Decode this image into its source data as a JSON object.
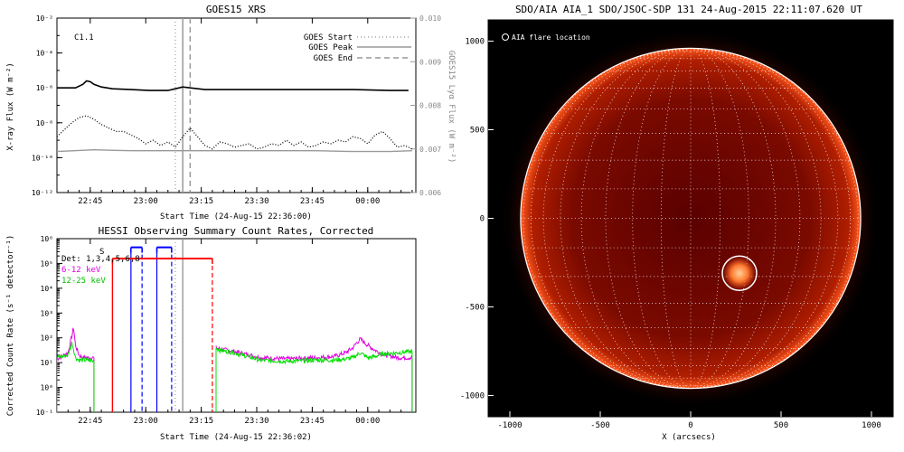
{
  "chart_data": [
    {
      "type": "line",
      "title": "GOES15 XRS",
      "annotation": "C1.1",
      "xlabel": "Start Time (24-Aug-15 22:36:00)",
      "ylabel": "X-ray Flux (W m⁻²)",
      "y2label": "GOES15 Lyα Flux (W m⁻²)",
      "xticks": [
        "22:45",
        "23:00",
        "23:15",
        "23:30",
        "23:45",
        "00:00"
      ],
      "x_minutes_from_2236": [
        9,
        24,
        39,
        54,
        69,
        84
      ],
      "xlim_minutes_from_2236": [
        0,
        97
      ],
      "yticks": [
        "10⁻²",
        "10⁻⁴",
        "10⁻⁶",
        "10⁻⁸",
        "10⁻¹⁰",
        "10⁻¹²"
      ],
      "ylim_log10": [
        -12,
        -2
      ],
      "y2ticks": [
        "0.010",
        "0.009",
        "0.008",
        "0.007",
        "0.006"
      ],
      "y2lim": [
        0.006,
        0.01
      ],
      "legend": [
        {
          "label": "GOES Start",
          "style": "dotted"
        },
        {
          "label": "GOES Peak",
          "style": "solid"
        },
        {
          "label": "GOES End",
          "style": "dashed"
        }
      ],
      "markers_minutes_from_2236": {
        "start": 32,
        "peak": 34,
        "end": 36
      },
      "series": [
        {
          "name": "",
          "style": "solid-black",
          "x": [
            0,
            5,
            7,
            8,
            9,
            10,
            12,
            15,
            20,
            25,
            30,
            32,
            34,
            36,
            40,
            50,
            60,
            70,
            80,
            90,
            95
          ],
          "log10_y": [
            -6.0,
            -6.0,
            -5.8,
            -5.6,
            -5.65,
            -5.8,
            -5.95,
            -6.05,
            -6.1,
            -6.15,
            -6.15,
            -6.05,
            -5.95,
            -6.0,
            -6.1,
            -6.1,
            -6.1,
            -6.1,
            -6.1,
            -6.15,
            -6.15
          ]
        },
        {
          "name": "",
          "style": "dotted-black",
          "x": [
            0,
            2,
            4,
            6,
            8,
            10,
            12,
            14,
            16,
            18,
            20,
            22,
            24,
            26,
            28,
            30,
            32,
            34,
            36,
            38,
            40,
            42,
            44,
            46,
            48,
            50,
            52,
            54,
            56,
            58,
            60,
            62,
            64,
            66,
            68,
            70,
            72,
            74,
            76,
            78,
            80,
            82,
            84,
            86,
            88,
            90,
            92,
            94,
            96
          ],
          "log10_y": [
            -8.8,
            -8.4,
            -8.0,
            -7.7,
            -7.6,
            -7.8,
            -8.1,
            -8.3,
            -8.5,
            -8.5,
            -8.7,
            -8.9,
            -9.2,
            -9.0,
            -9.3,
            -9.1,
            -9.4,
            -8.8,
            -8.3,
            -8.8,
            -9.3,
            -9.5,
            -9.1,
            -9.2,
            -9.4,
            -9.3,
            -9.2,
            -9.5,
            -9.4,
            -9.2,
            -9.3,
            -9.0,
            -9.3,
            -9.1,
            -9.4,
            -9.3,
            -9.1,
            -9.2,
            -9.0,
            -9.1,
            -8.8,
            -8.9,
            -9.2,
            -8.7,
            -8.5,
            -8.9,
            -9.4,
            -9.3,
            -9.5
          ]
        },
        {
          "name": "",
          "style": "solid-gray",
          "x": [
            0,
            10,
            20,
            30,
            40,
            50,
            60,
            70,
            80,
            90,
            96
          ],
          "log10_y": [
            -9.65,
            -9.55,
            -9.6,
            -9.6,
            -9.6,
            -9.6,
            -9.6,
            -9.6,
            -9.65,
            -9.65,
            -9.6
          ]
        }
      ]
    },
    {
      "type": "line",
      "title": "HESSI Observing Summary Count Rates, Corrected",
      "xlabel": "Start Time (24-Aug-15 22:36:02)",
      "ylabel": "Corrected Count Rate (s⁻¹ detector⁻¹)",
      "xticks": [
        "22:45",
        "23:00",
        "23:15",
        "23:30",
        "23:45",
        "00:00"
      ],
      "x_minutes_from_2236": [
        9,
        24,
        39,
        54,
        69,
        84
      ],
      "xlim_minutes_from_2236": [
        0,
        97
      ],
      "yticks": [
        "10⁶",
        "10⁵",
        "10⁴",
        "10³",
        "10²",
        "10¹",
        "10⁰",
        "10⁻¹"
      ],
      "ylim_log10": [
        -1,
        6
      ],
      "detector_label": "Det: 1,3,4,5,6,8",
      "segment_letter": "S",
      "legend": [
        {
          "label": "6-12 keV",
          "color": "#e000e0"
        },
        {
          "label": "12-25 keV",
          "color": "#00e000"
        }
      ],
      "vertical_markers_minutes_from_2236": {
        "red_solid": 15,
        "red_dashed": 42,
        "blue_solid": [
          20,
          27
        ],
        "blue_dashed": [
          23,
          31
        ],
        "gray_dotted": 32,
        "gray_solid": 34
      },
      "bars": [
        {
          "color": "#ff0000",
          "x": [
            15,
            42
          ],
          "log10_y": 5.2
        },
        {
          "color": "#0000ff",
          "x": [
            20,
            23
          ],
          "log10_y": 5.65
        },
        {
          "color": "#0000ff",
          "x": [
            27,
            31
          ],
          "log10_y": 5.65
        }
      ],
      "series": [
        {
          "name": "6-12 keV",
          "color": "#e000e0",
          "segments": [
            {
              "x": [
                0,
                3,
                4.5,
                5,
                6,
                7,
                8,
                10
              ],
              "log10_y": [
                1.15,
                1.4,
                2.4,
                1.7,
                1.3,
                1.2,
                1.2,
                1.2
              ]
            },
            {
              "x": [
                43,
                44,
                48,
                55,
                62,
                70,
                75,
                78,
                80,
                81,
                82,
                84,
                86,
                88,
                92,
                96
              ],
              "log10_y": [
                1.6,
                1.55,
                1.45,
                1.2,
                1.15,
                1.2,
                1.25,
                1.4,
                1.6,
                1.8,
                1.95,
                1.7,
                1.5,
                1.35,
                1.2,
                1.2
              ]
            }
          ]
        },
        {
          "name": "12-25 keV",
          "color": "#00e000",
          "segments": [
            {
              "x": [
                0,
                3,
                4,
                4.5,
                5,
                6,
                7,
                8,
                10
              ],
              "log10_y": [
                1.2,
                1.3,
                1.8,
                1.55,
                1.2,
                1.1,
                1.1,
                1.1,
                1.05
              ]
            },
            {
              "x": [
                43,
                44,
                48,
                55,
                62,
                70,
                75,
                78,
                80,
                82,
                84,
                86,
                88,
                92,
                96
              ],
              "log10_y": [
                1.6,
                1.5,
                1.4,
                1.1,
                1.05,
                1.1,
                1.1,
                1.15,
                1.2,
                1.4,
                1.2,
                1.25,
                1.35,
                1.4,
                1.45
              ]
            }
          ]
        }
      ]
    },
    {
      "type": "image",
      "title": "SDO/AIA AIA_1 SDO/JSOC-SDP 131 24-Aug-2015 22:11:07.620 UT",
      "legend_label": "AIA flare location",
      "xlabel": "X (arcsecs)",
      "xticks": [
        -1000,
        -500,
        0,
        500,
        1000
      ],
      "yticks": [
        1000,
        500,
        0,
        -500,
        -1000
      ],
      "xlim": [
        -1120,
        1120
      ],
      "ylim": [
        -1120,
        1120
      ],
      "solar_radius_arcsec": 950,
      "grid_step_deg": 10,
      "flare_location_arcsec": [
        270,
        -310
      ],
      "flare_circle_radius_arcsec": 95,
      "colors": {
        "disk_core": "#cc2200",
        "disk_edge": "#ff5a1f",
        "background": "#000000",
        "limb": "#ffffff"
      }
    }
  ]
}
